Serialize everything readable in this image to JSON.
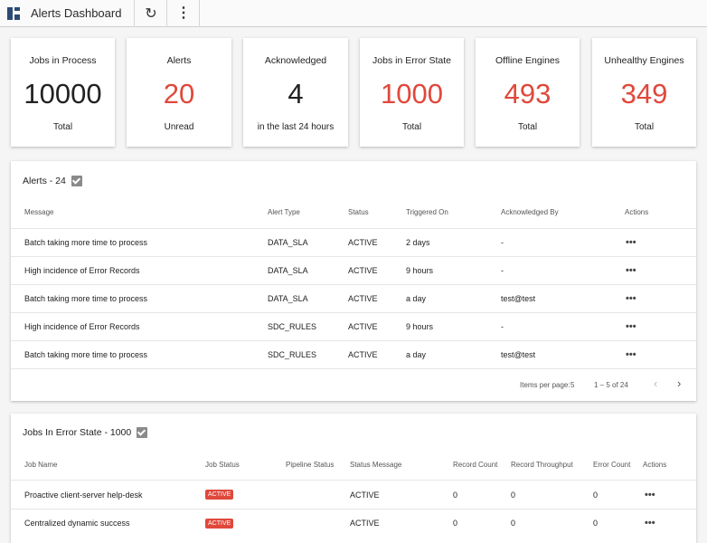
{
  "toolbar": {
    "title": "Alerts Dashboard",
    "refresh_icon": "↻",
    "menu_icon": "⋮"
  },
  "stats": [
    {
      "label": "Jobs in Process",
      "value": "10000",
      "sub": "Total",
      "color": "#222222"
    },
    {
      "label": "Alerts",
      "value": "20",
      "sub": "Unread",
      "color": "#e0483b"
    },
    {
      "label": "Acknowledged",
      "value": "4",
      "sub": "in the last 24 hours",
      "color": "#222222"
    },
    {
      "label": "Jobs in Error State",
      "value": "1000",
      "sub": "Total",
      "color": "#e0483b"
    },
    {
      "label": "Offline Engines",
      "value": "493",
      "sub": "Total",
      "color": "#e0483b"
    },
    {
      "label": "Unhealthy Engines",
      "value": "349",
      "sub": "Total",
      "color": "#e0483b"
    }
  ],
  "alerts": {
    "title": "Alerts - 24",
    "columns": [
      "Message",
      "Alert Type",
      "Status",
      "Triggered On",
      "Acknowledged By",
      "Actions"
    ],
    "rows": [
      [
        "Batch taking more time to process",
        "DATA_SLA",
        "ACTIVE",
        "2 days",
        "-"
      ],
      [
        "High incidence of Error Records",
        "DATA_SLA",
        "ACTIVE",
        "9 hours",
        "-"
      ],
      [
        "Batch taking more time to process",
        "DATA_SLA",
        "ACTIVE",
        "a day",
        "test@test"
      ],
      [
        "High incidence of Error Records",
        "SDC_RULES",
        "ACTIVE",
        "9 hours",
        "-"
      ],
      [
        "Batch taking more time to process",
        "SDC_RULES",
        "ACTIVE",
        "a day",
        "test@test"
      ]
    ],
    "actions_glyph": "•••",
    "pager": {
      "items_per_page_label": "Items per page:",
      "items_per_page": "5",
      "range": "1 – 5 of 24",
      "prev": "‹",
      "next": "›"
    }
  },
  "jobs": {
    "title": "Jobs In Error State - 1000",
    "columns": [
      "Job Name",
      "Job Status",
      "Pipeline Status",
      "Status Message",
      "Record Count",
      "Record Throughput",
      "Error Count",
      "Actions"
    ],
    "rows": [
      [
        "Proactive client-server help-desk",
        "ACTIVE",
        "",
        "ACTIVE",
        "0",
        "0",
        "0"
      ],
      [
        "Centralized dynamic success",
        "ACTIVE",
        "",
        "ACTIVE",
        "0",
        "0",
        "0"
      ]
    ],
    "actions_glyph": "•••"
  }
}
